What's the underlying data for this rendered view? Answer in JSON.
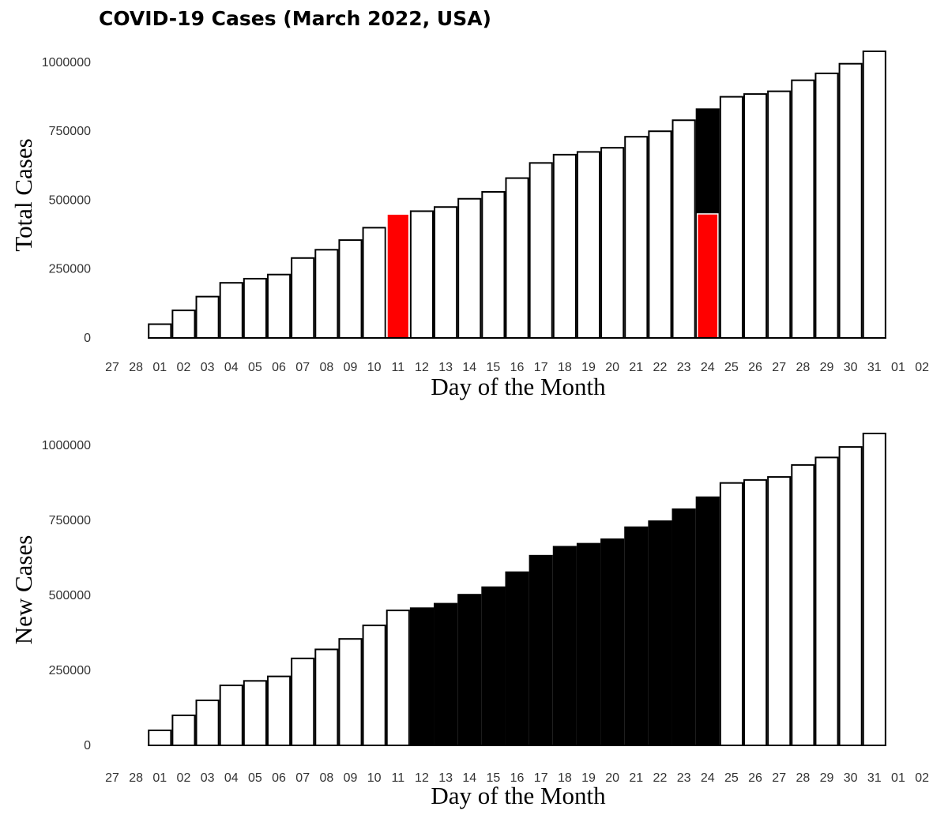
{
  "chart_data": [
    {
      "type": "bar",
      "title": "COVID-19 Cases (March 2022, USA)",
      "xlabel": "Day of the Month",
      "ylabel": "Total Cases",
      "ylim": [
        0,
        1050000
      ],
      "yticks": [
        "0",
        "250000",
        "500000",
        "750000",
        "1000000"
      ],
      "ytick_values": [
        0,
        250000,
        500000,
        750000,
        1000000
      ],
      "xtick_labels": [
        "27",
        "28",
        "01",
        "02",
        "03",
        "04",
        "05",
        "06",
        "07",
        "08",
        "09",
        "10",
        "11",
        "12",
        "13",
        "14",
        "15",
        "16",
        "17",
        "18",
        "19",
        "20",
        "21",
        "22",
        "23",
        "24",
        "25",
        "26",
        "27",
        "28",
        "29",
        "30",
        "31",
        "01",
        "02"
      ],
      "categories": [
        "01",
        "02",
        "03",
        "04",
        "05",
        "06",
        "07",
        "08",
        "09",
        "10",
        "11",
        "12",
        "13",
        "14",
        "15",
        "16",
        "17",
        "18",
        "19",
        "20",
        "21",
        "22",
        "23",
        "24",
        "25",
        "26",
        "27",
        "28",
        "29",
        "30",
        "31"
      ],
      "values": [
        50000,
        100000,
        150000,
        200000,
        215000,
        230000,
        290000,
        320000,
        355000,
        400000,
        450000,
        460000,
        475000,
        505000,
        530000,
        580000,
        635000,
        665000,
        675000,
        690000,
        730000,
        750000,
        790000,
        830000,
        875000,
        885000,
        895000,
        935000,
        960000,
        995000,
        1040000
      ],
      "highlights": [
        {
          "category": "11",
          "fill": "#ff0000"
        },
        {
          "category": "24",
          "fill": "#000000",
          "lower_value": 450000,
          "lower_fill": "#ff0000"
        }
      ]
    },
    {
      "type": "bar",
      "xlabel": "Day of the Month",
      "ylabel": "New Cases",
      "ylim": [
        0,
        1050000
      ],
      "yticks": [
        "0",
        "250000",
        "500000",
        "750000",
        "1000000"
      ],
      "ytick_values": [
        0,
        250000,
        500000,
        750000,
        1000000
      ],
      "xtick_labels": [
        "27",
        "28",
        "01",
        "02",
        "03",
        "04",
        "05",
        "06",
        "07",
        "08",
        "09",
        "10",
        "11",
        "12",
        "13",
        "14",
        "15",
        "16",
        "17",
        "18",
        "19",
        "20",
        "21",
        "22",
        "23",
        "24",
        "25",
        "26",
        "27",
        "28",
        "29",
        "30",
        "31",
        "01",
        "02"
      ],
      "categories": [
        "01",
        "02",
        "03",
        "04",
        "05",
        "06",
        "07",
        "08",
        "09",
        "10",
        "11",
        "12",
        "13",
        "14",
        "15",
        "16",
        "17",
        "18",
        "19",
        "20",
        "21",
        "22",
        "23",
        "24",
        "25",
        "26",
        "27",
        "28",
        "29",
        "30",
        "31"
      ],
      "values": [
        50000,
        100000,
        150000,
        200000,
        215000,
        230000,
        290000,
        320000,
        355000,
        400000,
        450000,
        460000,
        475000,
        505000,
        530000,
        580000,
        635000,
        665000,
        675000,
        690000,
        730000,
        750000,
        790000,
        830000,
        875000,
        885000,
        895000,
        935000,
        960000,
        995000,
        1040000
      ],
      "highlight_range": {
        "from": "12",
        "to": "24",
        "fill": "#000000"
      }
    }
  ]
}
